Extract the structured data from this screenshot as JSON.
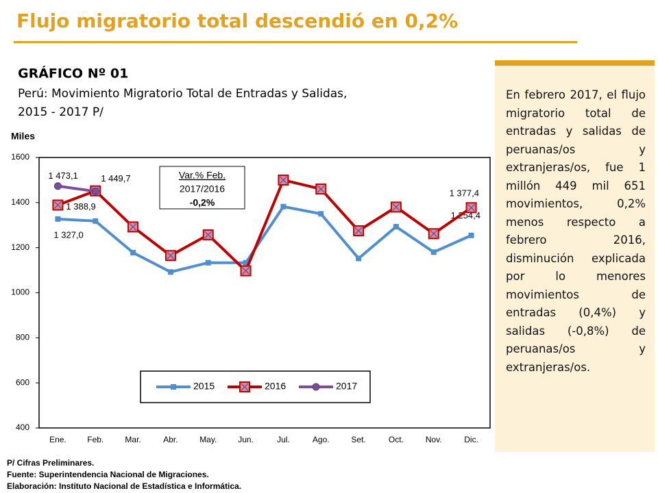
{
  "header": {
    "title": "Flujo migratorio total descendió en 0,2%"
  },
  "chart_data": {
    "type": "line",
    "title": "GRÁFICO Nº 01",
    "subtitle": [
      "Perú: Movimiento Migratorio Total de Entradas y Salidas,",
      "2015 - 2017 P/"
    ],
    "y_label": "Miles",
    "categories": [
      "Ene.",
      "Feb.",
      "Mar.",
      "Abr.",
      "May.",
      "Jun.",
      "Jul.",
      "Ago.",
      "Set.",
      "Oct.",
      "Nov.",
      "Dic."
    ],
    "series": [
      {
        "name": "2015",
        "color": "#4f8fd0",
        "marker": "square",
        "values": [
          1327.0,
          1318,
          1178,
          1092,
          1133,
          1133,
          1382,
          1350,
          1152,
          1293,
          1180,
          1254.4
        ],
        "value_labels": [
          "1 327,0",
          null,
          null,
          null,
          null,
          null,
          null,
          null,
          null,
          null,
          null,
          "1 254,4"
        ]
      },
      {
        "name": "2016",
        "color": "#c00000",
        "marker": "square-x",
        "values": [
          1388.9,
          1452,
          1292,
          1165,
          1257,
          1097,
          1500,
          1460,
          1275,
          1380,
          1262,
          1377.4
        ],
        "value_labels": [
          "1 388,9",
          null,
          null,
          null,
          null,
          null,
          null,
          null,
          null,
          null,
          null,
          "1 377,4"
        ]
      },
      {
        "name": "2017",
        "color": "#7a4e9c",
        "marker": "circle",
        "values": [
          1473.1,
          1449.7,
          null,
          null,
          null,
          null,
          null,
          null,
          null,
          null,
          null,
          null
        ],
        "value_labels": [
          "1 473,1",
          "1 449,7",
          null,
          null,
          null,
          null,
          null,
          null,
          null,
          null,
          null,
          null
        ]
      }
    ],
    "ylim": [
      400,
      1600
    ],
    "yticks": [
      400,
      600,
      800,
      1000,
      1200,
      1400,
      1600
    ],
    "grid": false,
    "legend": "bottom",
    "annotation": [
      "Var.% Feb.",
      "2017/2016",
      "-0,2%"
    ]
  },
  "side_panel": {
    "text": "En febrero 2017, el flujo migratorio total de entradas y salidas de peruanas/os y extranjeras/os, fue 1 millón 449 mil 651 movimientos, 0,2% menos respecto a febrero 2016, disminución explicada por lo menores movimientos de entradas (0,4%) y salidas (-0,8%) de peruanas/os y extranjeras/os."
  },
  "footnotes": [
    "P/ Cifras Preliminares.",
    "Fuente: Superintendencia Nacional de Migraciones.",
    "Elaboración: Instituto Nacional de Estadística e Informática."
  ]
}
